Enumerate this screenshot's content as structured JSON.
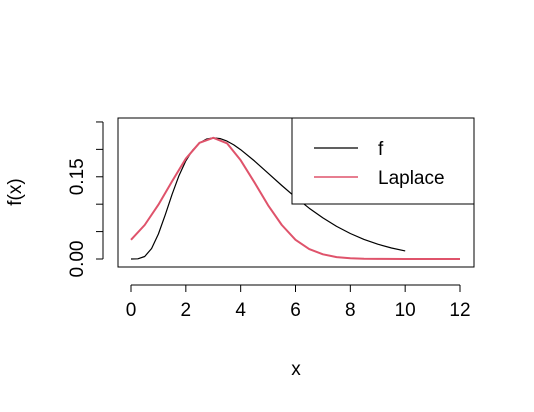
{
  "chart_data": {
    "type": "line",
    "title": "",
    "xlabel": "x",
    "ylabel": "f(x)",
    "xlim": [
      0,
      12
    ],
    "ylim": [
      0,
      0.27
    ],
    "x_ticks": [
      0,
      2,
      4,
      6,
      8,
      10,
      12
    ],
    "x_tick_labels": [
      "0",
      "2",
      "4",
      "6",
      "8",
      "10",
      "12"
    ],
    "y_ticks": [
      0,
      0.05,
      0.1,
      0.15,
      0.2,
      0.25
    ],
    "y_tick_labels": [
      "0.00",
      "",
      "",
      "0.15",
      "",
      ""
    ],
    "grid": false,
    "legend_position": "top-right",
    "series": [
      {
        "name": "f",
        "color": "#000000",
        "x": [
          0,
          0.25,
          0.5,
          0.75,
          1,
          1.25,
          1.5,
          1.75,
          2,
          2.25,
          2.5,
          2.75,
          3,
          3.25,
          3.5,
          3.75,
          4,
          4.5,
          5,
          5.5,
          6,
          6.5,
          7,
          7.5,
          8,
          8.5,
          9,
          9.5,
          10
        ],
        "values": [
          0,
          0.0003,
          0.0045,
          0.0191,
          0.0456,
          0.0808,
          0.118,
          0.1521,
          0.1789,
          0.1986,
          0.2116,
          0.2188,
          0.2211,
          0.2196,
          0.215,
          0.2081,
          0.1994,
          0.179,
          0.1565,
          0.134,
          0.1125,
          0.0927,
          0.075,
          0.0595,
          0.0465,
          0.0357,
          0.027,
          0.02,
          0.0147
        ]
      },
      {
        "name": "Laplace",
        "color": "#DF536B",
        "x": [
          0,
          0.5,
          1,
          1.5,
          2,
          2.5,
          3,
          3.5,
          4,
          4.5,
          5,
          5.5,
          6,
          6.5,
          7,
          7.5,
          8,
          8.5,
          9,
          10,
          11,
          12
        ],
        "values": [
          0.035,
          0.062,
          0.099,
          0.142,
          0.183,
          0.212,
          0.2211,
          0.211,
          0.18,
          0.14,
          0.098,
          0.062,
          0.035,
          0.018,
          0.0085,
          0.0035,
          0.0013,
          0.0004,
          0.0001,
          0,
          0,
          0
        ]
      }
    ]
  }
}
